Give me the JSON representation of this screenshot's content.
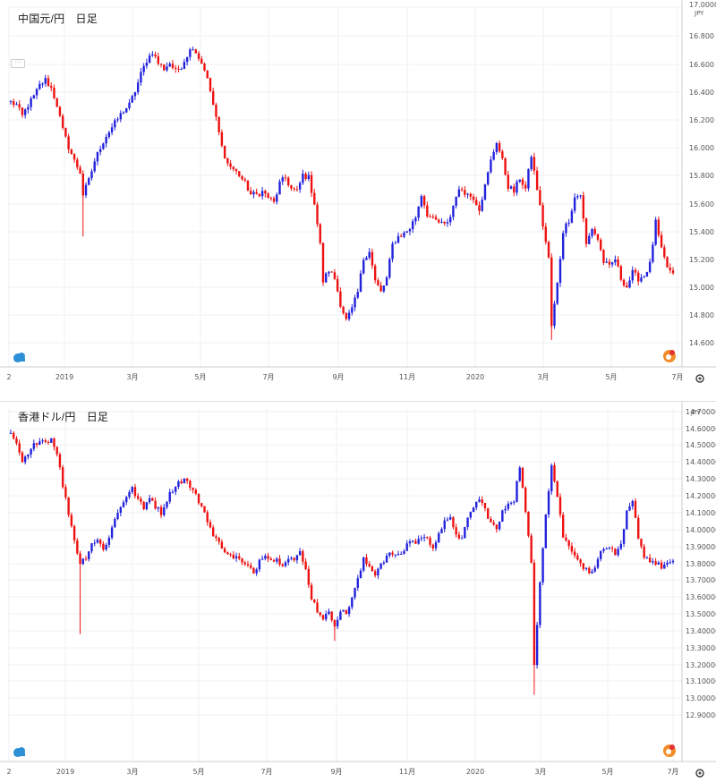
{
  "panels": [
    {
      "title": "中国元/円　日足",
      "currency": "JPY",
      "colors": {
        "up": "#2222dd",
        "down": "#ee1111"
      },
      "chart_data": {
        "type": "candlestick",
        "title": "中国元/円　日足",
        "x_ticks": [
          "2",
          "2019",
          "3月",
          "5月",
          "7月",
          "9月",
          "11月",
          "2020",
          "3月",
          "5月",
          "7月"
        ],
        "y_ticks": [
          "17.0000",
          "16.800",
          "16.600",
          "16.400",
          "16.200",
          "16.000",
          "15.800",
          "15.600",
          "15.400",
          "15.200",
          "15.000",
          "14.800",
          "14.600"
        ],
        "ylim": [
          14.5,
          17.0
        ],
        "series": [
          {
            "path": [
              [
                0,
                16.32
              ],
              [
                2,
                16.3
              ],
              [
                4,
                16.22
              ],
              [
                6,
                16.3
              ],
              [
                8,
                16.36
              ],
              [
                10,
                16.44
              ],
              [
                12,
                16.48
              ],
              [
                14,
                16.42
              ],
              [
                16,
                16.3
              ],
              [
                18,
                16.12
              ],
              [
                20,
                16.0
              ],
              [
                22,
                15.9
              ],
              [
                24,
                15.82
              ],
              [
                25,
                15.66
              ],
              [
                27,
                15.76
              ],
              [
                29,
                15.9
              ],
              [
                31,
                16.0
              ],
              [
                33,
                16.08
              ],
              [
                35,
                16.14
              ],
              [
                37,
                16.2
              ],
              [
                39,
                16.26
              ],
              [
                41,
                16.3
              ],
              [
                43,
                16.4
              ],
              [
                45,
                16.52
              ],
              [
                47,
                16.62
              ],
              [
                49,
                16.68
              ],
              [
                51,
                16.6
              ],
              [
                53,
                16.56
              ],
              [
                55,
                16.6
              ],
              [
                57,
                16.54
              ],
              [
                59,
                16.58
              ],
              [
                61,
                16.66
              ],
              [
                63,
                16.72
              ],
              [
                65,
                16.64
              ],
              [
                67,
                16.56
              ],
              [
                69,
                16.4
              ],
              [
                71,
                16.2
              ],
              [
                73,
                16.0
              ],
              [
                75,
                15.88
              ],
              [
                77,
                15.84
              ],
              [
                79,
                15.8
              ],
              [
                81,
                15.74
              ],
              [
                83,
                15.66
              ],
              [
                85,
                15.66
              ],
              [
                87,
                15.68
              ],
              [
                89,
                15.64
              ],
              [
                91,
                15.6
              ],
              [
                93,
                15.74
              ],
              [
                95,
                15.78
              ],
              [
                97,
                15.7
              ],
              [
                99,
                15.68
              ],
              [
                101,
                15.8
              ],
              [
                103,
                15.78
              ],
              [
                105,
                15.6
              ],
              [
                107,
                15.3
              ],
              [
                108,
                15.04
              ],
              [
                110,
                15.12
              ],
              [
                112,
                15.06
              ],
              [
                114,
                14.88
              ],
              [
                116,
                14.76
              ],
              [
                118,
                14.84
              ],
              [
                120,
                14.96
              ],
              [
                122,
                15.2
              ],
              [
                124,
                15.26
              ],
              [
                126,
                15.04
              ],
              [
                128,
                14.96
              ],
              [
                130,
                15.06
              ],
              [
                132,
                15.3
              ],
              [
                134,
                15.36
              ],
              [
                136,
                15.38
              ],
              [
                138,
                15.42
              ],
              [
                140,
                15.5
              ],
              [
                142,
                15.66
              ],
              [
                144,
                15.52
              ],
              [
                146,
                15.48
              ],
              [
                148,
                15.46
              ],
              [
                150,
                15.44
              ],
              [
                152,
                15.5
              ],
              [
                154,
                15.66
              ],
              [
                156,
                15.7
              ],
              [
                158,
                15.66
              ],
              [
                160,
                15.64
              ],
              [
                162,
                15.56
              ],
              [
                164,
                15.72
              ],
              [
                166,
                15.9
              ],
              [
                168,
                16.04
              ],
              [
                170,
                15.9
              ],
              [
                172,
                15.72
              ],
              [
                174,
                15.68
              ],
              [
                176,
                15.78
              ],
              [
                178,
                15.7
              ],
              [
                180,
                15.94
              ],
              [
                182,
                15.7
              ],
              [
                184,
                15.44
              ],
              [
                186,
                15.2
              ],
              [
                187,
                14.72
              ],
              [
                189,
                15.02
              ],
              [
                191,
                15.4
              ],
              [
                193,
                15.48
              ],
              [
                195,
                15.64
              ],
              [
                197,
                15.66
              ],
              [
                199,
                15.3
              ],
              [
                201,
                15.42
              ],
              [
                203,
                15.34
              ],
              [
                205,
                15.18
              ],
              [
                207,
                15.14
              ],
              [
                209,
                15.2
              ],
              [
                211,
                15.06
              ],
              [
                213,
                15.0
              ],
              [
                215,
                15.1
              ],
              [
                217,
                15.06
              ],
              [
                219,
                15.08
              ],
              [
                221,
                15.16
              ],
              [
                223,
                15.46
              ],
              [
                225,
                15.26
              ],
              [
                227,
                15.14
              ],
              [
                229,
                15.08
              ]
            ]
          }
        ],
        "spikes": [
          {
            "i": 25,
            "v": 15.36
          },
          {
            "i": 187,
            "v": 14.62
          }
        ]
      }
    },
    {
      "title": "香港ドル/円　日足",
      "currency": "JPY",
      "colors": {
        "up": "#2222dd",
        "down": "#ee1111"
      },
      "chart_data": {
        "type": "candlestick",
        "title": "香港ドル/円　日足",
        "x_ticks": [
          "2",
          "2019",
          "3月",
          "5月",
          "7月",
          "9月",
          "11月",
          "2020",
          "3月",
          "5月",
          "7月"
        ],
        "y_ticks": [
          "14.70000",
          "14.60000",
          "14.50000",
          "14.40000",
          "14.30000",
          "14.20000",
          "14.10000",
          "14.00000",
          "13.90000",
          "13.80000",
          "13.70000",
          "13.60000",
          "13.50000",
          "13.40000",
          "13.30000",
          "13.20000",
          "13.10000",
          "13.00000",
          "12.90000"
        ],
        "ylim": [
          12.88,
          14.72
        ],
        "series": [
          {
            "path": [
              [
                0,
                14.56
              ],
              [
                2,
                14.5
              ],
              [
                4,
                14.4
              ],
              [
                6,
                14.44
              ],
              [
                8,
                14.5
              ],
              [
                10,
                14.54
              ],
              [
                12,
                14.52
              ],
              [
                14,
                14.54
              ],
              [
                16,
                14.46
              ],
              [
                18,
                14.26
              ],
              [
                20,
                14.1
              ],
              [
                22,
                13.94
              ],
              [
                24,
                13.8
              ],
              [
                26,
                13.84
              ],
              [
                28,
                13.92
              ],
              [
                30,
                13.94
              ],
              [
                32,
                13.88
              ],
              [
                34,
                13.96
              ],
              [
                36,
                14.06
              ],
              [
                38,
                14.14
              ],
              [
                40,
                14.2
              ],
              [
                42,
                14.24
              ],
              [
                44,
                14.18
              ],
              [
                46,
                14.12
              ],
              [
                48,
                14.2
              ],
              [
                50,
                14.14
              ],
              [
                52,
                14.1
              ],
              [
                54,
                14.18
              ],
              [
                56,
                14.24
              ],
              [
                58,
                14.28
              ],
              [
                60,
                14.3
              ],
              [
                62,
                14.26
              ],
              [
                64,
                14.2
              ],
              [
                66,
                14.14
              ],
              [
                68,
                14.06
              ],
              [
                70,
                13.96
              ],
              [
                72,
                13.92
              ],
              [
                74,
                13.88
              ],
              [
                76,
                13.84
              ],
              [
                78,
                13.84
              ],
              [
                80,
                13.8
              ],
              [
                82,
                13.78
              ],
              [
                84,
                13.74
              ],
              [
                86,
                13.82
              ],
              [
                88,
                13.86
              ],
              [
                90,
                13.82
              ],
              [
                92,
                13.82
              ],
              [
                94,
                13.8
              ],
              [
                96,
                13.84
              ],
              [
                98,
                13.82
              ],
              [
                100,
                13.86
              ],
              [
                102,
                13.76
              ],
              [
                104,
                13.6
              ],
              [
                106,
                13.52
              ],
              [
                108,
                13.48
              ],
              [
                110,
                13.5
              ],
              [
                112,
                13.44
              ],
              [
                114,
                13.52
              ],
              [
                116,
                13.5
              ],
              [
                118,
                13.6
              ],
              [
                120,
                13.7
              ],
              [
                122,
                13.82
              ],
              [
                124,
                13.78
              ],
              [
                126,
                13.74
              ],
              [
                128,
                13.8
              ],
              [
                130,
                13.84
              ],
              [
                132,
                13.86
              ],
              [
                134,
                13.84
              ],
              [
                136,
                13.88
              ],
              [
                138,
                13.94
              ],
              [
                140,
                13.92
              ],
              [
                142,
                13.96
              ],
              [
                144,
                13.94
              ],
              [
                146,
                13.9
              ],
              [
                148,
                13.98
              ],
              [
                150,
                14.04
              ],
              [
                152,
                14.06
              ],
              [
                154,
                13.98
              ],
              [
                156,
                13.94
              ],
              [
                158,
                14.06
              ],
              [
                160,
                14.14
              ],
              [
                162,
                14.18
              ],
              [
                164,
                14.12
              ],
              [
                166,
                14.04
              ],
              [
                168,
                14.0
              ],
              [
                170,
                14.1
              ],
              [
                172,
                14.16
              ],
              [
                174,
                14.18
              ],
              [
                176,
                14.38
              ],
              [
                178,
                14.1
              ],
              [
                180,
                13.8
              ],
              [
                181,
                13.2
              ],
              [
                183,
                13.7
              ],
              [
                185,
                14.1
              ],
              [
                187,
                14.38
              ],
              [
                189,
                14.2
              ],
              [
                191,
                13.96
              ],
              [
                193,
                13.9
              ],
              [
                195,
                13.86
              ],
              [
                197,
                13.8
              ],
              [
                199,
                13.76
              ],
              [
                201,
                13.74
              ],
              [
                203,
                13.84
              ],
              [
                205,
                13.88
              ],
              [
                207,
                13.9
              ],
              [
                209,
                13.84
              ],
              [
                211,
                13.9
              ],
              [
                213,
                14.1
              ],
              [
                215,
                14.16
              ],
              [
                217,
                13.96
              ],
              [
                219,
                13.84
              ],
              [
                221,
                13.82
              ],
              [
                223,
                13.8
              ],
              [
                225,
                13.78
              ],
              [
                227,
                13.8
              ]
            ]
          }
        ],
        "spikes": [
          {
            "i": 24,
            "v": 13.38
          },
          {
            "i": 181,
            "v": 13.02
          },
          {
            "i": 112,
            "v": 13.34
          }
        ]
      }
    }
  ]
}
